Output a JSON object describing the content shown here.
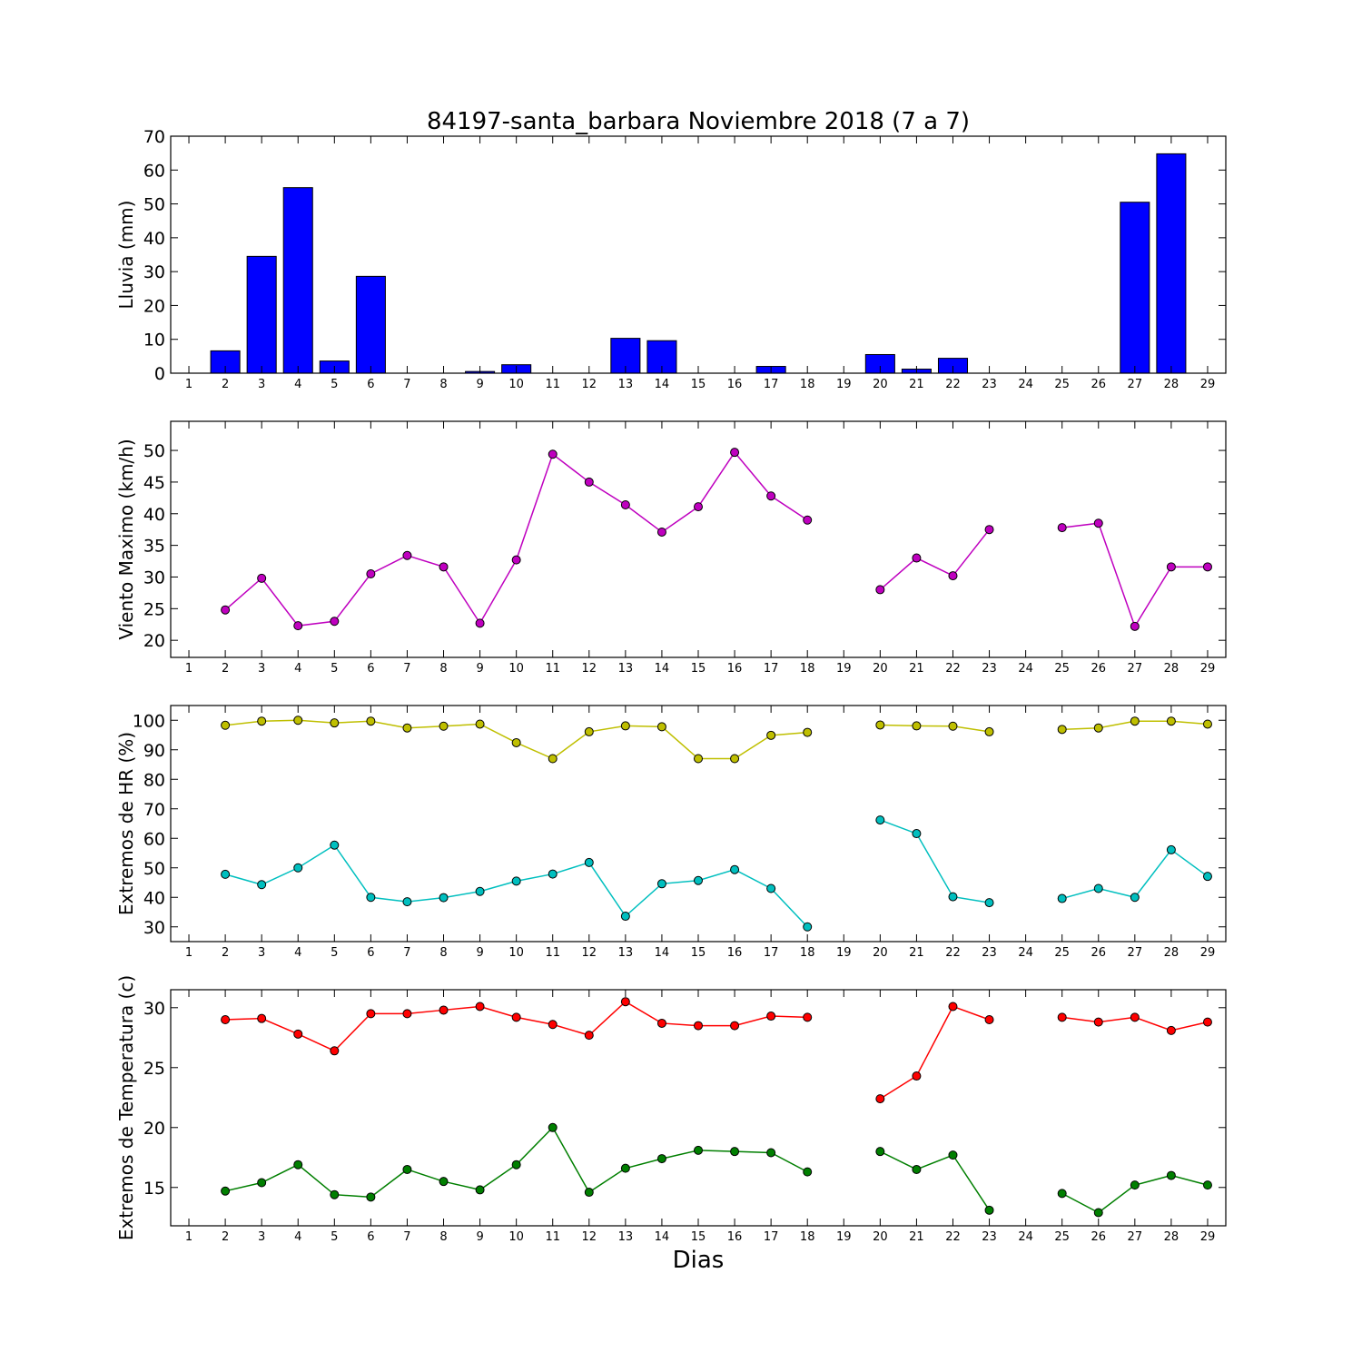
{
  "figure_title": "84197-santa_barbara Noviembre 2018  (7 a 7)",
  "xlabel": "Dias",
  "days": [
    1,
    2,
    3,
    4,
    5,
    6,
    7,
    8,
    9,
    10,
    11,
    12,
    13,
    14,
    15,
    16,
    17,
    18,
    19,
    20,
    21,
    22,
    23,
    24,
    25,
    26,
    27,
    28,
    29
  ],
  "chart_data": [
    {
      "type": "bar",
      "ylabel": "Lluvia (mm)",
      "ylim": [
        0,
        70
      ],
      "yticks": [
        0,
        10,
        20,
        30,
        40,
        50,
        60,
        70
      ],
      "xlim": [
        0.5,
        29.5
      ],
      "series": [
        {
          "color": "#0000ff",
          "values": [
            0,
            6.6,
            34.5,
            54.8,
            3.6,
            28.6,
            0,
            0,
            0.5,
            2.5,
            0,
            0,
            10.3,
            9.6,
            0,
            0,
            2.0,
            0,
            0,
            5.5,
            1.2,
            4.4,
            0,
            0,
            0,
            0,
            50.5,
            64.8,
            null
          ]
        }
      ]
    },
    {
      "type": "line",
      "ylabel": "Viento Maximo (km/h)",
      "ylim": [
        17.3,
        54.6
      ],
      "yticks": [
        20,
        25,
        30,
        35,
        40,
        45,
        50
      ],
      "xlim": [
        0.5,
        29.5
      ],
      "series": [
        {
          "color": "#bf00bf",
          "values": [
            null,
            24.8,
            29.8,
            22.3,
            23.0,
            30.5,
            33.4,
            31.6,
            22.7,
            32.7,
            49.4,
            45.0,
            41.4,
            37.1,
            41.1,
            49.7,
            42.8,
            39.0,
            null,
            28.0,
            33.0,
            30.2,
            37.5,
            null,
            37.8,
            38.5,
            22.2,
            31.6,
            31.6
          ]
        }
      ]
    },
    {
      "type": "line",
      "ylabel": "Extremos de HR (%)",
      "ylim": [
        25,
        105
      ],
      "yticks": [
        30,
        40,
        50,
        60,
        70,
        80,
        90,
        100
      ],
      "xlim": [
        0.5,
        29.5
      ],
      "series": [
        {
          "color": "#bfbf00",
          "values": [
            null,
            98.3,
            99.7,
            100.0,
            99.1,
            99.7,
            97.4,
            98.0,
            98.7,
            92.4,
            87.0,
            96.1,
            98.1,
            97.8,
            87.0,
            87.0,
            94.9,
            95.9,
            null,
            98.4,
            98.1,
            98.0,
            96.1,
            null,
            96.9,
            97.4,
            99.7,
            99.7,
            98.7
          ]
        },
        {
          "color": "#00bfbf",
          "values": [
            null,
            47.8,
            44.3,
            50.0,
            57.7,
            40.0,
            38.5,
            39.9,
            42.0,
            45.5,
            47.9,
            51.8,
            33.6,
            44.6,
            45.7,
            49.4,
            43.0,
            30.0,
            null,
            66.2,
            61.6,
            40.2,
            38.2,
            null,
            39.6,
            43.0,
            40.0,
            56.1,
            47.1
          ]
        }
      ]
    },
    {
      "type": "line",
      "ylabel": "Extremos de Temperatura (c)",
      "ylim": [
        11.8,
        31.5
      ],
      "yticks": [
        15,
        20,
        25,
        30
      ],
      "xlim": [
        0.5,
        29.5
      ],
      "series": [
        {
          "color": "#ff0000",
          "values": [
            null,
            29.0,
            29.1,
            27.8,
            26.4,
            29.5,
            29.5,
            29.8,
            30.1,
            29.2,
            28.6,
            27.7,
            30.5,
            28.7,
            28.5,
            28.5,
            29.3,
            29.2,
            null,
            22.4,
            24.3,
            30.1,
            29.0,
            null,
            29.2,
            28.8,
            29.2,
            28.1,
            28.8
          ]
        },
        {
          "color": "#007f00",
          "values": [
            null,
            14.7,
            15.4,
            16.9,
            14.4,
            14.2,
            16.5,
            15.5,
            14.8,
            16.9,
            20.0,
            14.6,
            16.6,
            17.4,
            18.1,
            18.0,
            17.9,
            16.3,
            null,
            18.0,
            16.5,
            17.7,
            13.1,
            null,
            14.5,
            12.9,
            15.2,
            16.0,
            15.2
          ]
        }
      ]
    }
  ]
}
